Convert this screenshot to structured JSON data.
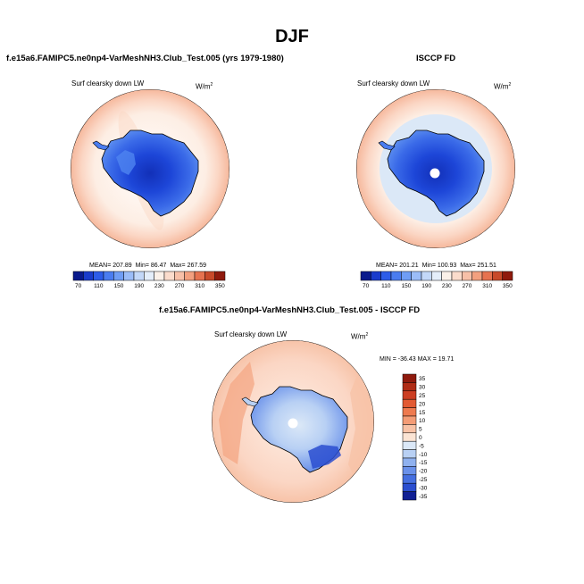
{
  "figure_title": "DJF",
  "panels": [
    {
      "title": "f.e15a6.FAMIPC5.ne0np4-VarMeshNH3.Club_Test.005 (yrs 1979-1980)",
      "variable": "Surf clearsky down LW",
      "units_base": "W/m",
      "units_exp": "2",
      "stats": {
        "mean_label": "MEAN=",
        "mean": "207.89",
        "min_label": "Min=",
        "min": "86.47",
        "max_label": "Max=",
        "max": "267.59"
      }
    },
    {
      "title": "ISCCP FD",
      "variable": "Surf clearsky down LW",
      "units_base": "W/m",
      "units_exp": "2",
      "stats": {
        "mean_label": "MEAN=",
        "mean": "201.21",
        "min_label": "Min=",
        "min": "100.93",
        "max_label": "Max=",
        "max": "251.51"
      }
    },
    {
      "title": "f.e15a6.FAMIPC5.ne0np4-VarMeshNH3.Club_Test.005 - ISCCP FD",
      "variable": "Surf clearsky down LW",
      "units_base": "W/m",
      "units_exp": "2",
      "stats_text": "MIN = -36.43 MAX =  19.71"
    }
  ],
  "chart_data": [
    {
      "type": "heatmap",
      "projection": "south polar stereographic",
      "title": "f.e15a6.FAMIPC5.ne0np4-VarMeshNH3.Club_Test.005 (yrs 1979-1980)",
      "variable": "Surf clearsky down LW",
      "units": "W/m2",
      "mean": 207.89,
      "min": 86.47,
      "max": 267.59,
      "colorbar_levels": [
        70,
        90,
        110,
        130,
        150,
        170,
        190,
        210,
        230,
        250,
        270,
        290,
        310,
        330,
        350
      ],
      "colorbar_ticks": [
        "70",
        "110",
        "150",
        "190",
        "230",
        "270",
        "310",
        "350"
      ],
      "colors": [
        "#0a1a8c",
        "#1a3ccc",
        "#2d5ce8",
        "#4a7cf0",
        "#6f9df5",
        "#9bbdf8",
        "#c3d8f8",
        "#e4eefa",
        "#fbf1e9",
        "#fbdccc",
        "#f7c0a8",
        "#f3a07f",
        "#e6724f",
        "#c84a2a",
        "#8f1a0d"
      ]
    },
    {
      "type": "heatmap",
      "projection": "south polar stereographic",
      "title": "ISCCP FD",
      "variable": "Surf clearsky down LW",
      "units": "W/m2",
      "mean": 201.21,
      "min": 100.93,
      "max": 251.51,
      "colorbar_levels": [
        70,
        90,
        110,
        130,
        150,
        170,
        190,
        210,
        230,
        250,
        270,
        290,
        310,
        330,
        350
      ],
      "colorbar_ticks": [
        "70",
        "110",
        "150",
        "190",
        "230",
        "270",
        "310",
        "350"
      ],
      "colors": [
        "#0a1a8c",
        "#1a3ccc",
        "#2d5ce8",
        "#4a7cf0",
        "#6f9df5",
        "#9bbdf8",
        "#c3d8f8",
        "#e4eefa",
        "#fbf1e9",
        "#fbdccc",
        "#f7c0a8",
        "#f3a07f",
        "#e6724f",
        "#c84a2a",
        "#8f1a0d"
      ]
    },
    {
      "type": "heatmap",
      "projection": "south polar stereographic",
      "title": "f.e15a6.FAMIPC5.ne0np4-VarMeshNH3.Club_Test.005 - ISCCP FD",
      "variable": "Surf clearsky down LW",
      "units": "W/m2",
      "min": -36.43,
      "max": 19.71,
      "colorbar_levels": [
        35,
        30,
        25,
        20,
        15,
        10,
        5,
        0,
        -5,
        -10,
        -15,
        -20,
        -25,
        -30,
        -35
      ],
      "colorbar_ticks": [
        "35",
        "30",
        "25",
        "20",
        "15",
        "10",
        "5",
        "0",
        "-5",
        "-10",
        "-15",
        "-20",
        "-25",
        "-30",
        "-35"
      ],
      "colors": [
        "#8f1a0d",
        "#b02c16",
        "#cc3e22",
        "#e25a33",
        "#ee7a4f",
        "#f49c76",
        "#f8c2a6",
        "#fbe4d4",
        "#dbe8f7",
        "#b8d0f4",
        "#8fb1ef",
        "#6a91ea",
        "#456fe0",
        "#2a4ed0",
        "#101f94"
      ]
    }
  ],
  "colors": {
    "background": "#ffffff",
    "ocean_warm": "#f6b89c",
    "ocean_mid": "#fbd6c4",
    "ocean_pale": "#fdeee4",
    "ice_light": "#cfe0f7",
    "ice_mid": "#4f84f0",
    "ice_dark": "#1d46d8",
    "ice_deep": "#1230b8",
    "diff_warm": "#f7c3a8",
    "diff_cool": "#7ea4ee"
  }
}
